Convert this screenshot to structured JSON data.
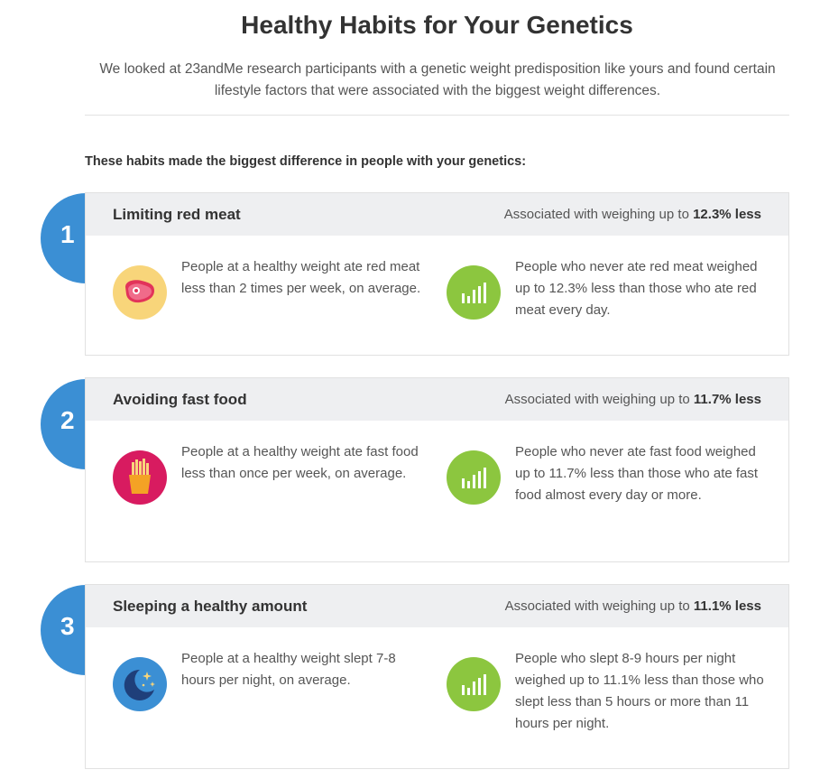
{
  "title": "Healthy Habits for Your Genetics",
  "intro": "We looked at 23andMe research participants with a genetic weight predisposition like yours and found certain lifestyle factors that were associated with the biggest weight differences.",
  "section_heading": "These habits made the biggest difference in people with your genetics:",
  "assoc_prefix": "Associated with weighing up to",
  "colors": {
    "accent_blue": "#3b8fd4",
    "header_bg": "#eeeff1",
    "chart_green": "#8cc63f",
    "meat_yellow": "#f8d57a",
    "fries_pink": "#d81b60"
  },
  "habits": [
    {
      "number": "1",
      "title": "Limiting red meat",
      "percent": "12.3% less",
      "icon": "steak-icon",
      "left_text": "People at a healthy weight ate red meat less than 2 times per week, on average.",
      "right_icon": "bar-chart-icon",
      "right_text": "People who never ate red meat weighed up to 12.3% less than those who ate red meat every day."
    },
    {
      "number": "2",
      "title": "Avoiding fast food",
      "percent": "11.7% less",
      "icon": "fries-icon",
      "left_text": "People at a healthy weight ate fast food less than once per week, on average.",
      "right_icon": "bar-chart-icon",
      "right_text": "People who never ate fast food weighed up to 11.7% less than those who ate fast food almost every day or more."
    },
    {
      "number": "3",
      "title": "Sleeping a healthy amount",
      "percent": "11.1% less",
      "icon": "moon-stars-icon",
      "left_text": "People at a healthy weight slept 7-8 hours per night, on average.",
      "right_icon": "bar-chart-icon",
      "right_text": "People who slept 8-9 hours per night weighed up to 11.1% less than those who slept less than 5 hours or more than 11 hours per night."
    }
  ]
}
